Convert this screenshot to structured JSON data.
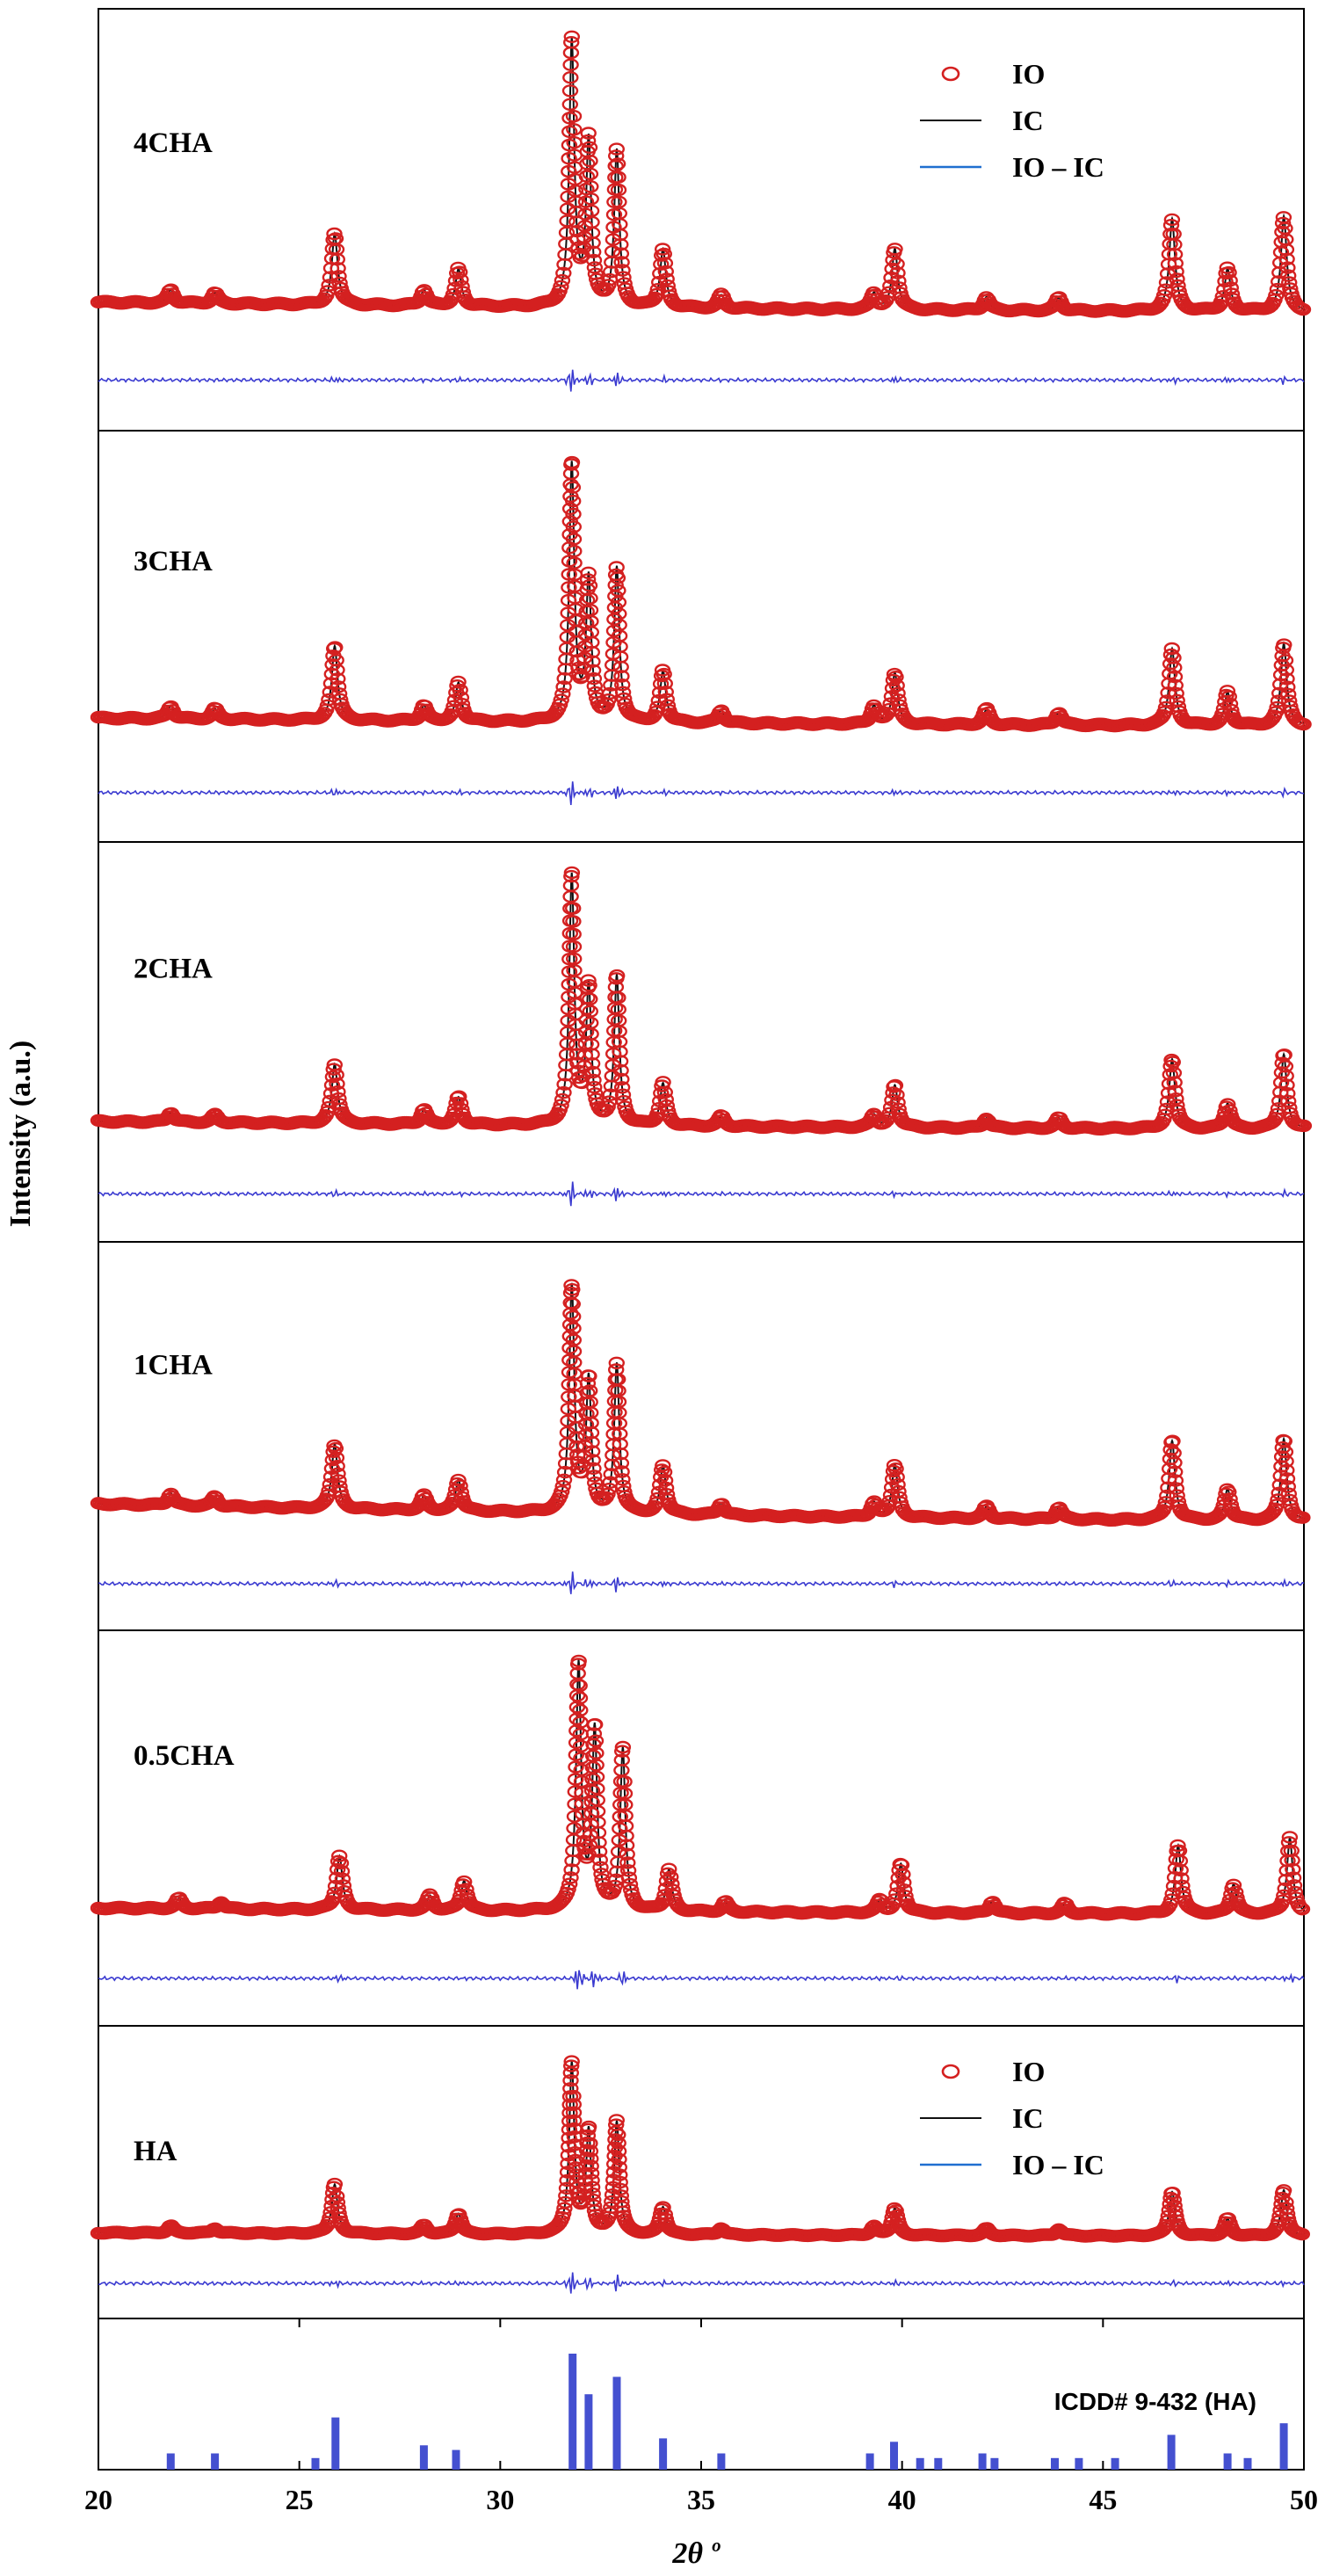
{
  "chart_data": {
    "type": "line",
    "xlabel": "2θ º",
    "ylabel": "Intensity (a.u.)",
    "xlim": [
      20,
      50
    ],
    "xticks": [
      20,
      25,
      30,
      35,
      40,
      45,
      50
    ],
    "legend": {
      "entries": [
        "IO",
        "IC",
        "IO – IC"
      ],
      "shown_in": [
        "4CHA",
        "HA"
      ],
      "placement": "top-right"
    },
    "colors": {
      "observed": "#d42020",
      "calculated": "#111111",
      "difference": "#3a3ad0",
      "reference_bars": "#4450d0"
    },
    "panels": [
      {
        "sample": "4CHA",
        "intensity_scale": 1.0,
        "background": {
          "start": 0.055,
          "end": 0.02
        },
        "peaks": [
          {
            "pos": 21.8,
            "h": 0.05
          },
          {
            "pos": 22.9,
            "h": 0.04
          },
          {
            "pos": 25.88,
            "h": 0.27
          },
          {
            "pos": 28.1,
            "h": 0.06
          },
          {
            "pos": 28.96,
            "h": 0.14
          },
          {
            "pos": 31.78,
            "h": 1.0
          },
          {
            "pos": 32.2,
            "h": 0.62
          },
          {
            "pos": 32.9,
            "h": 0.59
          },
          {
            "pos": 34.05,
            "h": 0.22
          },
          {
            "pos": 35.5,
            "h": 0.05
          },
          {
            "pos": 39.3,
            "h": 0.06
          },
          {
            "pos": 39.82,
            "h": 0.23
          },
          {
            "pos": 42.1,
            "h": 0.05
          },
          {
            "pos": 43.9,
            "h": 0.05
          },
          {
            "pos": 46.72,
            "h": 0.35
          },
          {
            "pos": 48.1,
            "h": 0.16
          },
          {
            "pos": 49.5,
            "h": 0.36
          }
        ]
      },
      {
        "sample": "3CHA",
        "intensity_scale": 1.0,
        "background": {
          "start": 0.05,
          "end": 0.02
        },
        "peaks": [
          {
            "pos": 21.8,
            "h": 0.05
          },
          {
            "pos": 22.9,
            "h": 0.04
          },
          {
            "pos": 25.88,
            "h": 0.29
          },
          {
            "pos": 28.1,
            "h": 0.06
          },
          {
            "pos": 28.96,
            "h": 0.15
          },
          {
            "pos": 31.78,
            "h": 1.0
          },
          {
            "pos": 32.2,
            "h": 0.55
          },
          {
            "pos": 32.9,
            "h": 0.6
          },
          {
            "pos": 34.05,
            "h": 0.2
          },
          {
            "pos": 35.5,
            "h": 0.05
          },
          {
            "pos": 39.3,
            "h": 0.07
          },
          {
            "pos": 39.82,
            "h": 0.2
          },
          {
            "pos": 42.1,
            "h": 0.06
          },
          {
            "pos": 43.9,
            "h": 0.05
          },
          {
            "pos": 46.72,
            "h": 0.3
          },
          {
            "pos": 48.1,
            "h": 0.13
          },
          {
            "pos": 49.5,
            "h": 0.32
          }
        ]
      },
      {
        "sample": "2CHA",
        "intensity_scale": 1.0,
        "background": {
          "start": 0.05,
          "end": 0.02
        },
        "peaks": [
          {
            "pos": 21.8,
            "h": 0.04
          },
          {
            "pos": 22.9,
            "h": 0.03
          },
          {
            "pos": 25.88,
            "h": 0.24
          },
          {
            "pos": 28.1,
            "h": 0.06
          },
          {
            "pos": 28.96,
            "h": 0.11
          },
          {
            "pos": 31.78,
            "h": 1.0
          },
          {
            "pos": 32.2,
            "h": 0.55
          },
          {
            "pos": 32.9,
            "h": 0.6
          },
          {
            "pos": 34.05,
            "h": 0.17
          },
          {
            "pos": 35.5,
            "h": 0.04
          },
          {
            "pos": 39.3,
            "h": 0.05
          },
          {
            "pos": 39.82,
            "h": 0.17
          },
          {
            "pos": 42.1,
            "h": 0.04
          },
          {
            "pos": 43.9,
            "h": 0.04
          },
          {
            "pos": 46.72,
            "h": 0.28
          },
          {
            "pos": 48.1,
            "h": 0.1
          },
          {
            "pos": 49.5,
            "h": 0.3
          }
        ]
      },
      {
        "sample": "1CHA",
        "intensity_scale": 1.0,
        "background": {
          "start": 0.09,
          "end": 0.02
        },
        "peaks": [
          {
            "pos": 21.8,
            "h": 0.05
          },
          {
            "pos": 22.9,
            "h": 0.04
          },
          {
            "pos": 25.88,
            "h": 0.27
          },
          {
            "pos": 28.1,
            "h": 0.06
          },
          {
            "pos": 28.96,
            "h": 0.13
          },
          {
            "pos": 31.78,
            "h": 0.94
          },
          {
            "pos": 32.2,
            "h": 0.55
          },
          {
            "pos": 32.9,
            "h": 0.62
          },
          {
            "pos": 34.05,
            "h": 0.2
          },
          {
            "pos": 35.5,
            "h": 0.05
          },
          {
            "pos": 39.3,
            "h": 0.06
          },
          {
            "pos": 39.82,
            "h": 0.22
          },
          {
            "pos": 42.1,
            "h": 0.05
          },
          {
            "pos": 43.9,
            "h": 0.05
          },
          {
            "pos": 46.72,
            "h": 0.33
          },
          {
            "pos": 48.1,
            "h": 0.13
          },
          {
            "pos": 49.5,
            "h": 0.34
          }
        ]
      },
      {
        "sample": "0.5CHA",
        "intensity_scale": 1.0,
        "background": {
          "start": 0.045,
          "end": 0.02
        },
        "peaks": [
          {
            "pos": 22.0,
            "h": 0.04
          },
          {
            "pos": 23.05,
            "h": 0.03
          },
          {
            "pos": 26.0,
            "h": 0.22
          },
          {
            "pos": 28.25,
            "h": 0.06
          },
          {
            "pos": 29.1,
            "h": 0.12
          },
          {
            "pos": 31.95,
            "h": 1.0
          },
          {
            "pos": 32.35,
            "h": 0.73
          },
          {
            "pos": 33.05,
            "h": 0.66
          },
          {
            "pos": 34.2,
            "h": 0.17
          },
          {
            "pos": 35.6,
            "h": 0.04
          },
          {
            "pos": 39.45,
            "h": 0.05
          },
          {
            "pos": 39.97,
            "h": 0.2
          },
          {
            "pos": 42.25,
            "h": 0.05
          },
          {
            "pos": 44.05,
            "h": 0.04
          },
          {
            "pos": 46.87,
            "h": 0.28
          },
          {
            "pos": 48.25,
            "h": 0.12
          },
          {
            "pos": 49.65,
            "h": 0.31
          }
        ]
      },
      {
        "sample": "HA",
        "intensity_scale": 1.0,
        "background": {
          "start": 0.04,
          "end": 0.02
        },
        "peaks": [
          {
            "pos": 21.8,
            "h": 0.04
          },
          {
            "pos": 22.9,
            "h": 0.03
          },
          {
            "pos": 25.88,
            "h": 0.29
          },
          {
            "pos": 28.1,
            "h": 0.05
          },
          {
            "pos": 28.96,
            "h": 0.12
          },
          {
            "pos": 31.78,
            "h": 1.0
          },
          {
            "pos": 32.2,
            "h": 0.6
          },
          {
            "pos": 32.9,
            "h": 0.66
          },
          {
            "pos": 34.05,
            "h": 0.16
          },
          {
            "pos": 35.5,
            "h": 0.04
          },
          {
            "pos": 39.3,
            "h": 0.05
          },
          {
            "pos": 39.82,
            "h": 0.16
          },
          {
            "pos": 42.1,
            "h": 0.04
          },
          {
            "pos": 43.9,
            "h": 0.04
          },
          {
            "pos": 46.72,
            "h": 0.26
          },
          {
            "pos": 48.1,
            "h": 0.1
          },
          {
            "pos": 49.5,
            "h": 0.27
          }
        ]
      }
    ],
    "reference": {
      "label": "ICDD# 9-432 (HA)",
      "lines": [
        {
          "pos": 21.8,
          "h": 0.14
        },
        {
          "pos": 22.9,
          "h": 0.14
        },
        {
          "pos": 25.4,
          "h": 0.1
        },
        {
          "pos": 25.9,
          "h": 0.45
        },
        {
          "pos": 28.1,
          "h": 0.21
        },
        {
          "pos": 28.9,
          "h": 0.17
        },
        {
          "pos": 31.8,
          "h": 1.0
        },
        {
          "pos": 32.2,
          "h": 0.65
        },
        {
          "pos": 32.9,
          "h": 0.8
        },
        {
          "pos": 34.05,
          "h": 0.27
        },
        {
          "pos": 35.5,
          "h": 0.14
        },
        {
          "pos": 39.2,
          "h": 0.14
        },
        {
          "pos": 39.8,
          "h": 0.24
        },
        {
          "pos": 40.45,
          "h": 0.1
        },
        {
          "pos": 40.9,
          "h": 0.1
        },
        {
          "pos": 42.0,
          "h": 0.14
        },
        {
          "pos": 42.3,
          "h": 0.1
        },
        {
          "pos": 43.8,
          "h": 0.1
        },
        {
          "pos": 44.4,
          "h": 0.1
        },
        {
          "pos": 45.3,
          "h": 0.1
        },
        {
          "pos": 46.7,
          "h": 0.3
        },
        {
          "pos": 48.1,
          "h": 0.14
        },
        {
          "pos": 48.6,
          "h": 0.1
        },
        {
          "pos": 49.5,
          "h": 0.4
        }
      ]
    }
  }
}
